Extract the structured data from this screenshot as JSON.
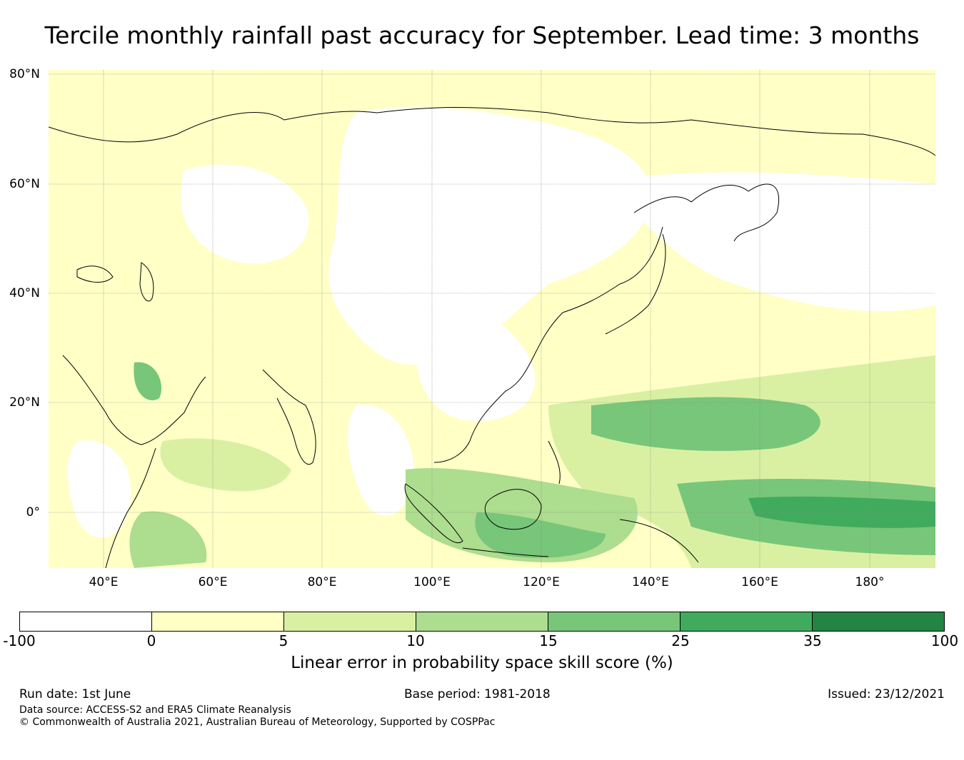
{
  "title": "Tercile monthly rainfall past accuracy for September. Lead time: 3 months",
  "map": {
    "lat_labels": [
      "80°N",
      "60°N",
      "40°N",
      "20°N",
      "0°"
    ],
    "lon_labels": [
      "40°E",
      "60°E",
      "80°E",
      "100°E",
      "120°E",
      "140°E",
      "160°E",
      "180°"
    ]
  },
  "colorbar": {
    "ticks": [
      "-100",
      "0",
      "5",
      "10",
      "15",
      "25",
      "35",
      "100"
    ],
    "colors": [
      "#ffffff",
      "#ffffc6",
      "#d9f0a3",
      "#addd8e",
      "#78c679",
      "#41ab5d",
      "#238443"
    ],
    "label": "Linear error in probability space skill score (%)"
  },
  "footer": {
    "run_date": "Run date: 1st June",
    "base_period": "Base period: 1981-2018",
    "issued": "Issued: 23/12/2021",
    "data_source": "Data source: ACCESS-S2 and ERA5 Climate Reanalysis",
    "copyright": "© Commonwealth of Australia 2021, Australian Bureau of Meteorology, Supported by COSPPac"
  }
}
